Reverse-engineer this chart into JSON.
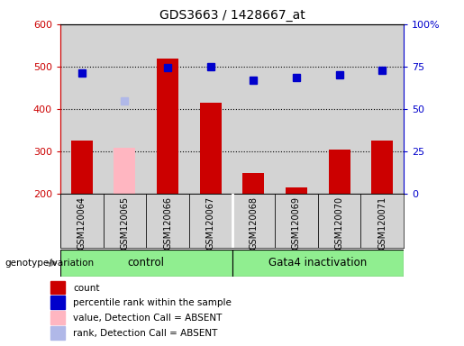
{
  "title": "GDS3663 / 1428667_at",
  "samples": [
    "GSM120064",
    "GSM120065",
    "GSM120066",
    "GSM120067",
    "GSM120068",
    "GSM120069",
    "GSM120070",
    "GSM120071"
  ],
  "count_values": [
    325,
    null,
    520,
    415,
    250,
    215,
    305,
    325
  ],
  "count_absent": [
    null,
    308,
    null,
    null,
    null,
    null,
    null,
    null
  ],
  "percentile_values": [
    484,
    null,
    497,
    500,
    467,
    474,
    481,
    491
  ],
  "percentile_absent": [
    null,
    420,
    null,
    null,
    null,
    null,
    null,
    null
  ],
  "ylim_left": [
    200,
    600
  ],
  "ylim_right": [
    0,
    100
  ],
  "yticks_left": [
    200,
    300,
    400,
    500,
    600
  ],
  "yticks_right": [
    0,
    25,
    50,
    75,
    100
  ],
  "ytick_right_labels": [
    "0",
    "25",
    "50",
    "75",
    "100%"
  ],
  "group_boundaries": [
    3.5
  ],
  "group_labels": [
    "control",
    "Gata4 inactivation"
  ],
  "group_ranges": [
    [
      0,
      3
    ],
    [
      4,
      7
    ]
  ],
  "group_color": "#90ee90",
  "bar_color_present": "#cc0000",
  "bar_color_absent": "#ffb6c1",
  "dot_color_present": "#0000cc",
  "dot_color_absent": "#b0b8e8",
  "dot_size": 6,
  "bar_width": 0.5,
  "bg_color_sample": "#d3d3d3",
  "left_axis_color": "#cc0000",
  "right_axis_color": "#0000cc",
  "genotype_label": "genotype/variation",
  "legend_items": [
    {
      "label": "count",
      "color": "#cc0000"
    },
    {
      "label": "percentile rank within the sample",
      "color": "#0000cc"
    },
    {
      "label": "value, Detection Call = ABSENT",
      "color": "#ffb6c1"
    },
    {
      "label": "rank, Detection Call = ABSENT",
      "color": "#b0b8e8"
    }
  ]
}
